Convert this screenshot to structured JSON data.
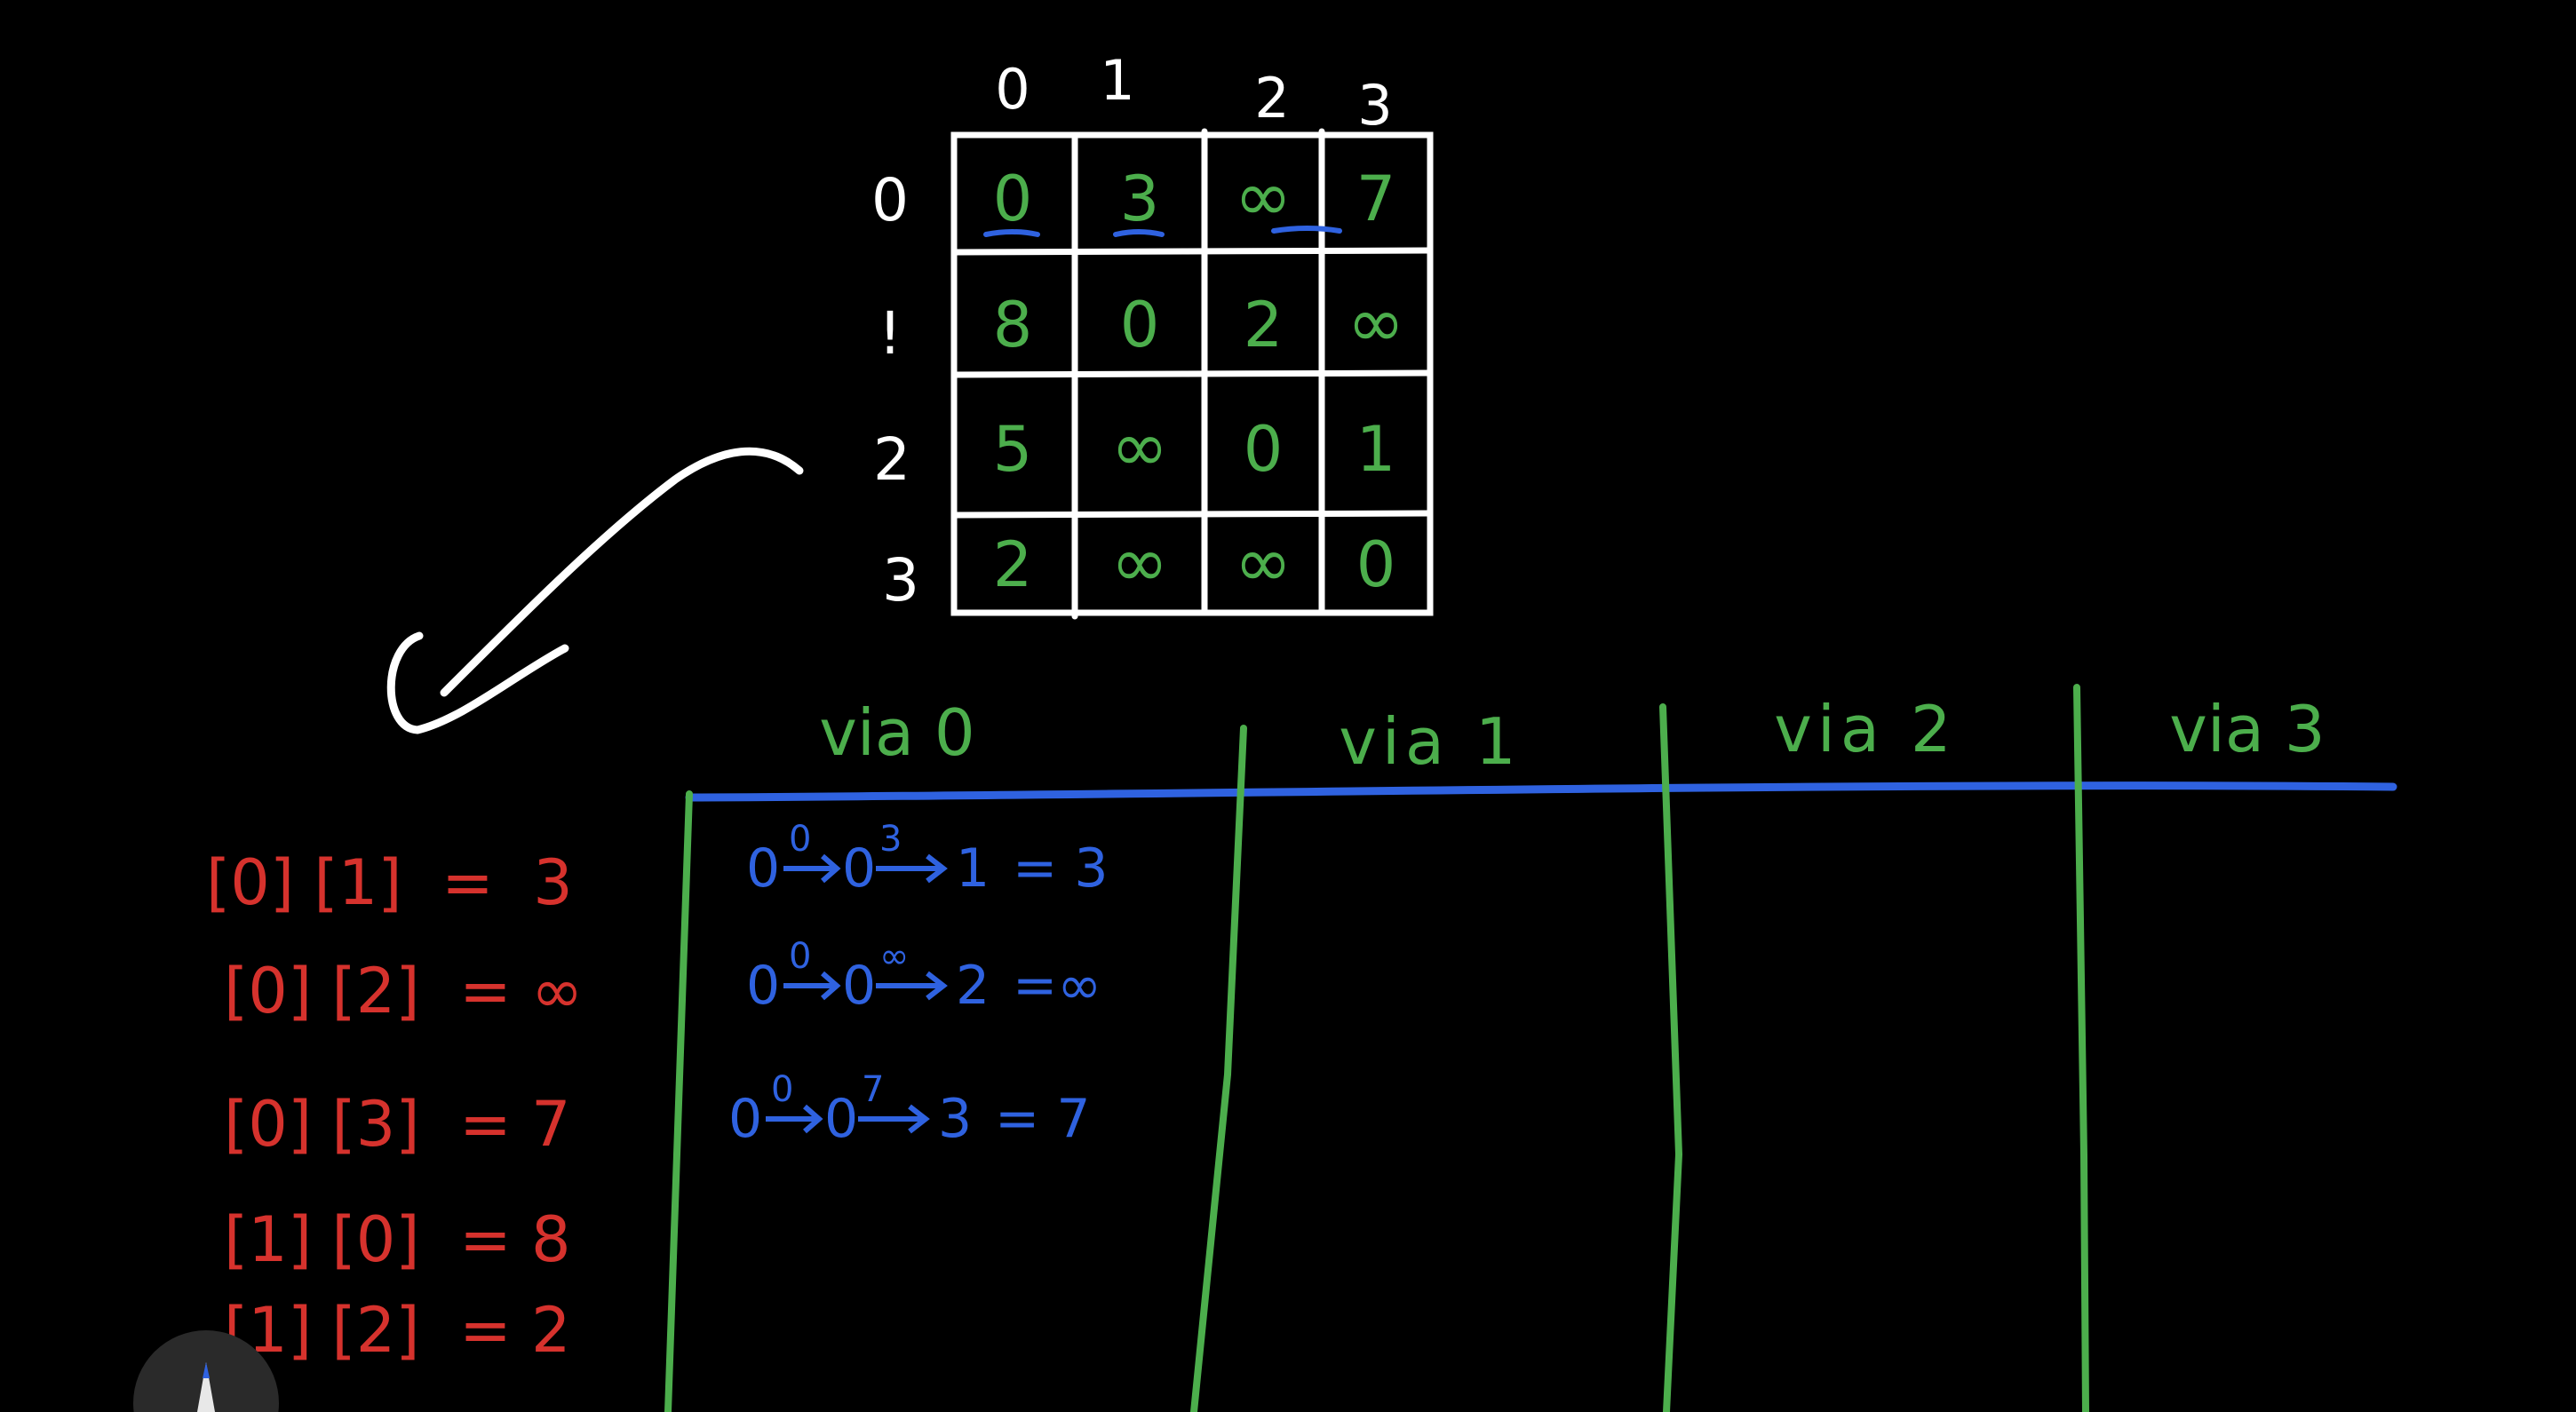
{
  "matrix": {
    "col_headers": [
      "0",
      "1",
      "2",
      "3"
    ],
    "row_headers": [
      "0",
      "!",
      "2",
      "3"
    ],
    "rows": [
      [
        "0",
        "3",
        "∞",
        "7"
      ],
      [
        "8",
        "0",
        "2",
        "∞"
      ],
      [
        "5",
        "∞",
        "0",
        "1"
      ],
      [
        "2",
        "∞",
        "∞",
        "0"
      ]
    ],
    "underlined_cells": [
      [
        0,
        0
      ],
      [
        0,
        1
      ],
      [
        0,
        2
      ]
    ]
  },
  "columns": [
    "via 0",
    "via 1",
    "via 2",
    "via 3"
  ],
  "red_list": [
    "[0] [1]  =  3",
    "[0] [2]  = ∞",
    "[0] [3]  = 7",
    "[1] [0]  = 8",
    "[1] [2]  = 2"
  ],
  "via0_paths": [
    {
      "from": "0",
      "w1": "0",
      "mid": "0",
      "w2": "3",
      "to": "1",
      "result": "= 3"
    },
    {
      "from": "0",
      "w1": "0",
      "mid": "0",
      "w2": "∞",
      "to": "2",
      "result": "=∞"
    },
    {
      "from": "0",
      "w1": "0",
      "mid": "0",
      "w2": "7",
      "to": "3",
      "result": "= 7"
    }
  ],
  "colors": {
    "background": "#000000",
    "matrix_grid": "#ffffff",
    "matrix_values": "#4cae4c",
    "list": "#d6322d",
    "paths": "#2f62e0",
    "column_dividers": "#4cae4c",
    "header_line": "#2f62e0",
    "underline": "#2f62e0"
  }
}
